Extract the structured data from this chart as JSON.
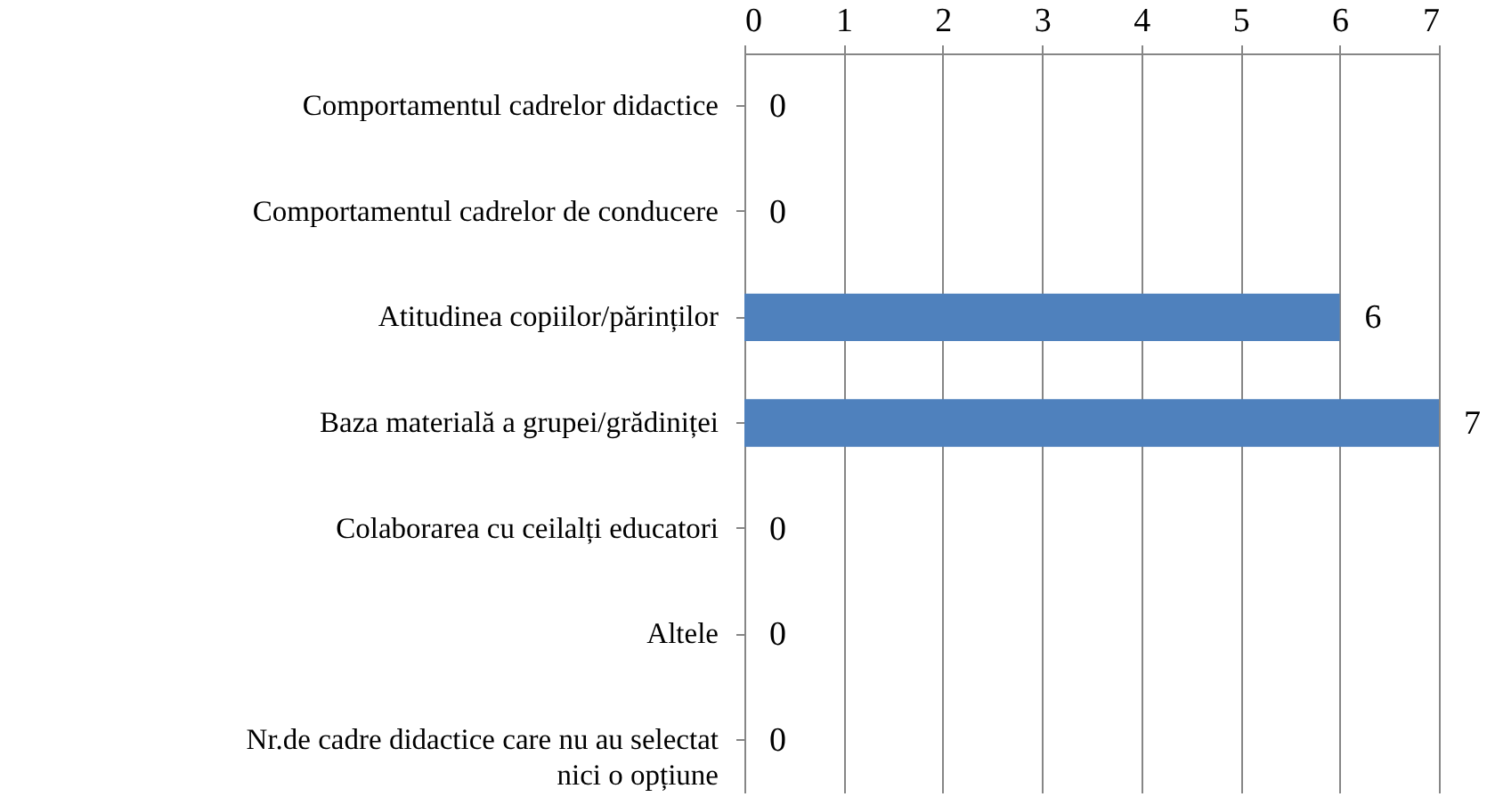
{
  "chart_data": {
    "type": "bar",
    "orientation": "horizontal",
    "categories": [
      "Comportamentul cadrelor didactice",
      "Comportamentul cadrelor de conducere",
      "Atitudinea copiilor/părinților",
      "Baza materială a grupei/grădiniței",
      "Colaborarea cu ceilalți educatori",
      "Altele",
      "Nr.de cadre didactice care nu au selectat nici o opțiune"
    ],
    "values": [
      0,
      0,
      6,
      7,
      0,
      0,
      0
    ],
    "color": "#4f81bd",
    "xlim": [
      0,
      7
    ],
    "xticks": [
      0,
      1,
      2,
      3,
      4,
      5,
      6,
      7
    ],
    "grid": true,
    "data_labels": true
  }
}
